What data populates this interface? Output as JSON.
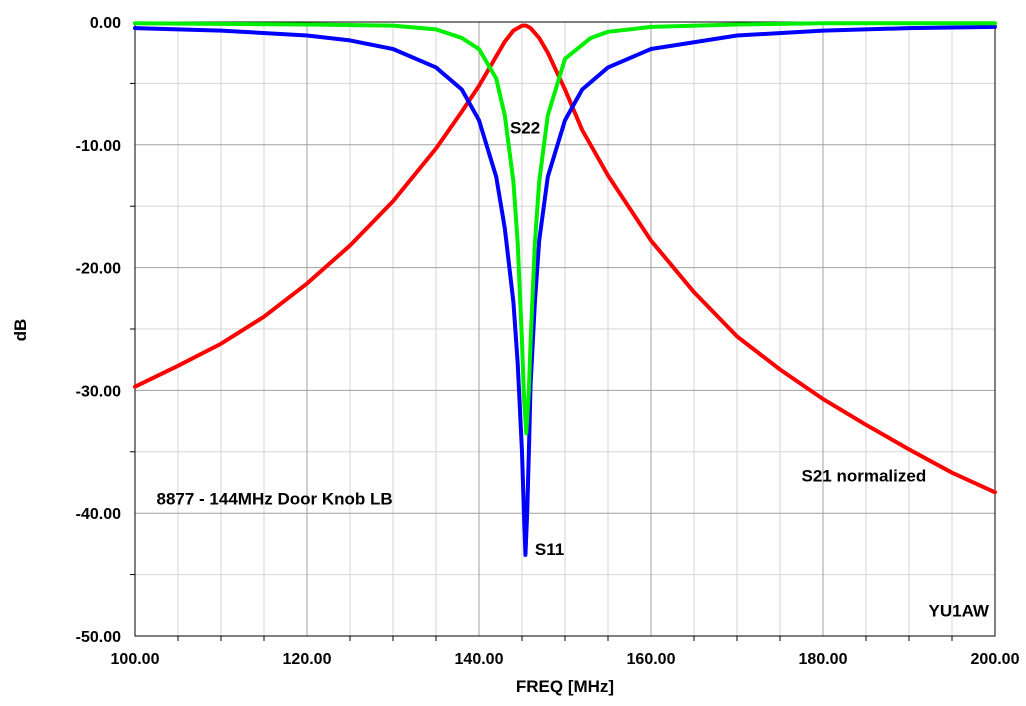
{
  "chart_data": {
    "type": "line",
    "title": "",
    "xlabel": "FREQ [MHz]",
    "ylabel": "dB",
    "xlim": [
      100,
      200
    ],
    "ylim": [
      -50,
      0
    ],
    "x_ticks": [
      100,
      120,
      140,
      160,
      180,
      200
    ],
    "x_tick_labels": [
      "100.00",
      "120.00",
      "140.00",
      "160.00",
      "180.00",
      "200.00"
    ],
    "y_ticks": [
      0,
      -10,
      -20,
      -30,
      -40,
      -50
    ],
    "y_tick_labels": [
      "0.00",
      "-10.00",
      "-20.00",
      "-30.00",
      "-40.00",
      "-50.00"
    ],
    "x_minor_step": 5,
    "y_minor_step": 5,
    "grid": true,
    "series": [
      {
        "name": "S21 normalized",
        "color": "#ff0000",
        "x": [
          100,
          105,
          110,
          115,
          120,
          125,
          130,
          135,
          138,
          140,
          142,
          143,
          144,
          145,
          145.5,
          146,
          147,
          148,
          150,
          152,
          155,
          160,
          165,
          170,
          175,
          180,
          185,
          190,
          195,
          200
        ],
        "y": [
          -29.7,
          -28.0,
          -26.2,
          -24.0,
          -21.3,
          -18.2,
          -14.6,
          -10.3,
          -7.3,
          -5.2,
          -2.8,
          -1.6,
          -0.7,
          -0.3,
          -0.3,
          -0.5,
          -1.3,
          -2.5,
          -5.5,
          -8.8,
          -12.5,
          -17.8,
          -22.0,
          -25.6,
          -28.3,
          -30.7,
          -32.8,
          -34.8,
          -36.7,
          -38.3
        ]
      },
      {
        "name": "S11",
        "color": "#0000ff",
        "x": [
          100,
          110,
          120,
          125,
          130,
          135,
          138,
          140,
          142,
          143,
          144,
          144.5,
          145,
          145.2,
          145.4,
          145.6,
          145.8,
          146,
          146.5,
          147,
          148,
          150,
          152,
          155,
          160,
          170,
          180,
          190,
          200
        ],
        "y": [
          -0.5,
          -0.7,
          -1.1,
          -1.5,
          -2.2,
          -3.7,
          -5.5,
          -8.0,
          -12.6,
          -16.8,
          -22.8,
          -27.8,
          -35.0,
          -39.5,
          -43.4,
          -40.0,
          -35.0,
          -29.5,
          -22.8,
          -17.8,
          -12.6,
          -8.0,
          -5.5,
          -3.7,
          -2.2,
          -1.1,
          -0.7,
          -0.5,
          -0.4
        ]
      },
      {
        "name": "S22",
        "color": "#00ee00",
        "x": [
          100,
          120,
          130,
          135,
          138,
          140,
          142,
          143,
          144,
          144.5,
          145,
          145.2,
          145.5,
          145.8,
          146,
          146.5,
          147,
          148,
          150,
          153,
          155,
          160,
          170,
          180,
          200
        ],
        "y": [
          -0.1,
          -0.2,
          -0.3,
          -0.6,
          -1.3,
          -2.2,
          -4.6,
          -7.6,
          -13.0,
          -18.0,
          -26.0,
          -30.0,
          -33.5,
          -30.0,
          -26.0,
          -18.0,
          -13.0,
          -7.6,
          -3.0,
          -1.3,
          -0.8,
          -0.4,
          -0.2,
          -0.1,
          -0.1
        ]
      }
    ],
    "annotations": [
      {
        "id": "s22",
        "text": "S22",
        "x": 143.6,
        "y": -9.1,
        "anchor": "start"
      },
      {
        "id": "s11",
        "text": "S11",
        "x": 146.5,
        "y": -43.4,
        "anchor": "start"
      },
      {
        "id": "s21",
        "text": "S21 normalized",
        "x": 177.5,
        "y": -37.4,
        "anchor": "start"
      },
      {
        "id": "title",
        "text": "8877 - 144MHz Door Knob LB",
        "x": 102.5,
        "y": -39.3,
        "anchor": "start"
      },
      {
        "id": "credit",
        "text": "YU1AW",
        "x": 199.3,
        "y": -48.4,
        "anchor": "end"
      }
    ]
  }
}
